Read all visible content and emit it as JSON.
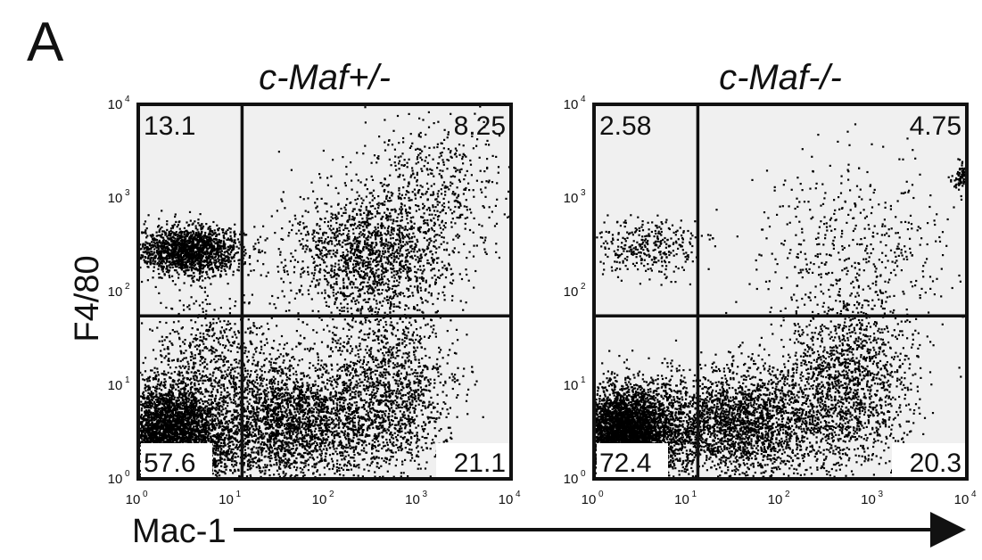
{
  "figure": {
    "panel_letter": "A",
    "y_label": "F4/80",
    "x_label": "Mac-1"
  },
  "chart_data": [
    {
      "type": "scatter",
      "title": "c-Maf+/-",
      "xlabel": "Mac-1",
      "ylabel": "F4/80",
      "x_scale": "log",
      "y_scale": "log",
      "xlim": [
        1,
        10000
      ],
      "ylim": [
        1,
        10000
      ],
      "x_ticks": [
        "10",
        "10",
        "10",
        "10",
        "10"
      ],
      "x_tick_exponents": [
        "0",
        "1",
        "2",
        "3",
        "4"
      ],
      "y_ticks": [
        "10",
        "10",
        "10",
        "10",
        "10"
      ],
      "y_tick_exponents": [
        "0",
        "1",
        "2",
        "3",
        "4"
      ],
      "gate": {
        "x": 13,
        "y": 55
      },
      "quadrants": {
        "upper_left": "13.1",
        "upper_right": "8.25",
        "lower_left": "57.6",
        "lower_right": "21.1"
      },
      "clusters": [
        {
          "cx": 3.5,
          "cy": 280,
          "spread_x": 0.28,
          "spread_y": 0.13,
          "n": 1700
        },
        {
          "cx": 2.2,
          "cy": 3,
          "spread_x": 0.32,
          "spread_y": 0.28,
          "n": 4200
        },
        {
          "cx": 40,
          "cy": 4,
          "spread_x": 0.45,
          "spread_y": 0.35,
          "n": 2600
        },
        {
          "cx": 450,
          "cy": 8,
          "spread_x": 0.35,
          "spread_y": 0.45,
          "n": 1500
        },
        {
          "cx": 300,
          "cy": 250,
          "spread_x": 0.45,
          "spread_y": 0.35,
          "n": 1600
        },
        {
          "cx": 1500,
          "cy": 1200,
          "spread_x": 0.4,
          "spread_y": 0.4,
          "n": 500
        },
        {
          "cx": 6,
          "cy": 20,
          "spread_x": 0.35,
          "spread_y": 0.3,
          "n": 500
        }
      ]
    },
    {
      "type": "scatter",
      "title": "c-Maf-/-",
      "xlabel": "Mac-1",
      "ylabel": "F4/80",
      "x_scale": "log",
      "y_scale": "log",
      "xlim": [
        1,
        10000
      ],
      "ylim": [
        1,
        10000
      ],
      "x_ticks": [
        "10",
        "10",
        "10",
        "10",
        "10"
      ],
      "x_tick_exponents": [
        "0",
        "1",
        "2",
        "3",
        "4"
      ],
      "y_ticks": [
        "10",
        "10",
        "10",
        "10",
        "10"
      ],
      "y_tick_exponents": [
        "0",
        "1",
        "2",
        "3",
        "4"
      ],
      "gate": {
        "x": 13,
        "y": 55
      },
      "quadrants": {
        "upper_left": "2.58",
        "upper_right": "4.75",
        "lower_left": "72.4",
        "lower_right": "20.3"
      },
      "clusters": [
        {
          "cx": 3.5,
          "cy": 300,
          "spread_x": 0.3,
          "spread_y": 0.15,
          "n": 350
        },
        {
          "cx": 2.2,
          "cy": 3,
          "spread_x": 0.3,
          "spread_y": 0.25,
          "n": 5200
        },
        {
          "cx": 40,
          "cy": 4,
          "spread_x": 0.45,
          "spread_y": 0.3,
          "n": 2400
        },
        {
          "cx": 500,
          "cy": 10,
          "spread_x": 0.35,
          "spread_y": 0.45,
          "n": 1500
        },
        {
          "cx": 600,
          "cy": 300,
          "spread_x": 0.55,
          "spread_y": 0.5,
          "n": 500
        },
        {
          "cx": 9000,
          "cy": 1700,
          "spread_x": 0.05,
          "spread_y": 0.08,
          "n": 120
        }
      ]
    }
  ],
  "colors": {
    "quadrant_fill": "#f0f0f0",
    "dot": "#000000",
    "ink": "#111111"
  }
}
